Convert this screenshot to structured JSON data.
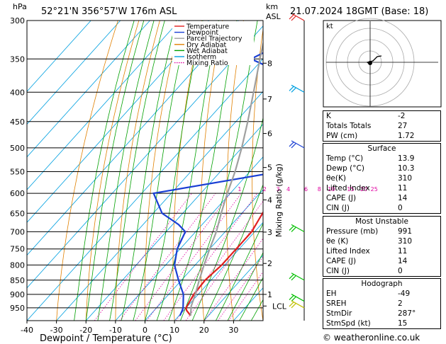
{
  "header": {
    "pressure_unit": "hPa",
    "location": "52°21'N  356°57'W  176m  ASL",
    "height_unit_km": "km",
    "height_unit_asl": "ASL",
    "valid_time": "21.07.2024  18GMT  (Base: 18)"
  },
  "chart_data": {
    "type": "line",
    "title": "",
    "xlabel": "Dewpoint / Temperature (°C)",
    "ylabel_right": "Mixing Ratio (g/kg)",
    "xlim": [
      -40,
      40
    ],
    "pressure_range": [
      300,
      1000
    ],
    "x_ticks": [
      -40,
      -30,
      -20,
      -10,
      0,
      10,
      20,
      30
    ],
    "pressure_ticks": [
      300,
      350,
      400,
      450,
      500,
      550,
      600,
      650,
      700,
      750,
      800,
      850,
      900,
      950
    ],
    "altitude_ticks_km": [
      {
        "label": "8",
        "p": 356
      },
      {
        "label": "7",
        "p": 411
      },
      {
        "label": "6",
        "p": 472
      },
      {
        "label": "5",
        "p": 541
      },
      {
        "label": "4",
        "p": 616
      },
      {
        "label": "3",
        "p": 701
      },
      {
        "label": "2",
        "p": 795
      },
      {
        "label": "1",
        "p": 900
      },
      {
        "label": "LCL",
        "p": 943
      }
    ],
    "mixing_ratio_labels": [
      {
        "label": "1",
        "x": -6.5
      },
      {
        "label": "2",
        "x": 2
      },
      {
        "label": "3",
        "x": 6.5
      },
      {
        "label": "4",
        "x": 10
      },
      {
        "label": "6",
        "x": 16
      },
      {
        "label": "8",
        "x": 20.5
      },
      {
        "label": "10",
        "x": 24
      },
      {
        "label": "15",
        "x": 30.5
      },
      {
        "label": "20",
        "x": 35
      },
      {
        "label": "25",
        "x": 38.5
      }
    ],
    "legend": [
      "Temperature",
      "Dewpoint",
      "Parcel Trajectory",
      "Dry Adiabat",
      "Wet Adiabat",
      "Isotherm",
      "Mixing Ratio"
    ],
    "legend_colors": [
      "#e02020",
      "#1a3fd4",
      "#a0a0a0",
      "#e08000",
      "#00a000",
      "#00a0e0",
      "#e000a0"
    ],
    "series": [
      {
        "name": "Temperature",
        "points": [
          [
            980,
            13.9
          ],
          [
            960,
            11
          ],
          [
            950,
            10
          ],
          [
            900,
            8.5
          ],
          [
            850,
            8
          ],
          [
            800,
            9
          ],
          [
            750,
            9
          ],
          [
            700,
            9
          ],
          [
            650,
            7
          ],
          [
            600,
            6
          ],
          [
            550,
            3
          ],
          [
            500,
            2
          ],
          [
            450,
            -1
          ],
          [
            400,
            -6
          ],
          [
            350,
            -13
          ],
          [
            300,
            -19
          ]
        ]
      },
      {
        "name": "Dewpoint",
        "points": [
          [
            980,
            10.3
          ],
          [
            960,
            9.5
          ],
          [
            950,
            9
          ],
          [
            900,
            5
          ],
          [
            850,
            -1
          ],
          [
            800,
            -7
          ],
          [
            750,
            -11
          ],
          [
            700,
            -13.5
          ],
          [
            680,
            -18
          ],
          [
            650,
            -27
          ],
          [
            600,
            -36
          ],
          [
            550,
            0
          ],
          [
            500,
            -1
          ],
          [
            450,
            -4
          ],
          [
            400,
            -9
          ],
          [
            350,
            -44
          ],
          [
            300,
            -30
          ]
        ]
      },
      {
        "name": "Parcel Trajectory",
        "points": [
          [
            980,
            13.9
          ],
          [
            943,
            11.2
          ],
          [
            900,
            9
          ],
          [
            850,
            6
          ],
          [
            800,
            3
          ],
          [
            750,
            0
          ],
          [
            700,
            -3
          ],
          [
            650,
            -7
          ],
          [
            600,
            -11
          ],
          [
            550,
            -15
          ],
          [
            500,
            -20
          ],
          [
            450,
            -26
          ],
          [
            400,
            -33
          ],
          [
            350,
            -41
          ],
          [
            300,
            -50
          ]
        ]
      }
    ],
    "wind_barbs": [
      {
        "p": 300,
        "color": "#e02020"
      },
      {
        "p": 400,
        "color": "#00a0e0"
      },
      {
        "p": 500,
        "color": "#1a3fd4"
      },
      {
        "p": 700,
        "color": "#00c000"
      },
      {
        "p": 850,
        "color": "#00c000"
      },
      {
        "p": 925,
        "color": "#00c000"
      },
      {
        "p": 950,
        "color": "#c0c000"
      }
    ]
  },
  "hodograph": {
    "label": "kt"
  },
  "indices": {
    "k_label": "K",
    "k_value": "-2",
    "tt_label": "Totals Totals",
    "tt_value": "27",
    "pw_label": "PW (cm)",
    "pw_value": "1.72"
  },
  "surface": {
    "title": "Surface",
    "temp_label": "Temp (°C)",
    "temp_value": "13.9",
    "dewp_label": "Dewp (°C)",
    "dewp_value": "10.3",
    "theta_label": "θe(K)",
    "theta_value": "310",
    "li_label": "Lifted Index",
    "li_value": "11",
    "cape_label": "CAPE (J)",
    "cape_value": "14",
    "cin_label": "CIN (J)",
    "cin_value": "0"
  },
  "most_unstable": {
    "title": "Most Unstable",
    "pres_label": "Pressure (mb)",
    "pres_value": "991",
    "theta_label": "θe (K)",
    "theta_value": "310",
    "li_label": "Lifted Index",
    "li_value": "11",
    "cape_label": "CAPE (J)",
    "cape_value": "14",
    "cin_label": "CIN (J)",
    "cin_value": "0"
  },
  "hodo_params": {
    "title": "Hodograph",
    "eh_label": "EH",
    "eh_value": "-49",
    "sreh_label": "SREH",
    "sreh_value": "2",
    "stmdir_label": "StmDir",
    "stmdir_value": "287°",
    "stmspd_label": "StmSpd (kt)",
    "stmspd_value": "15"
  },
  "footer": {
    "copyright": "© weatheronline.co.uk"
  }
}
